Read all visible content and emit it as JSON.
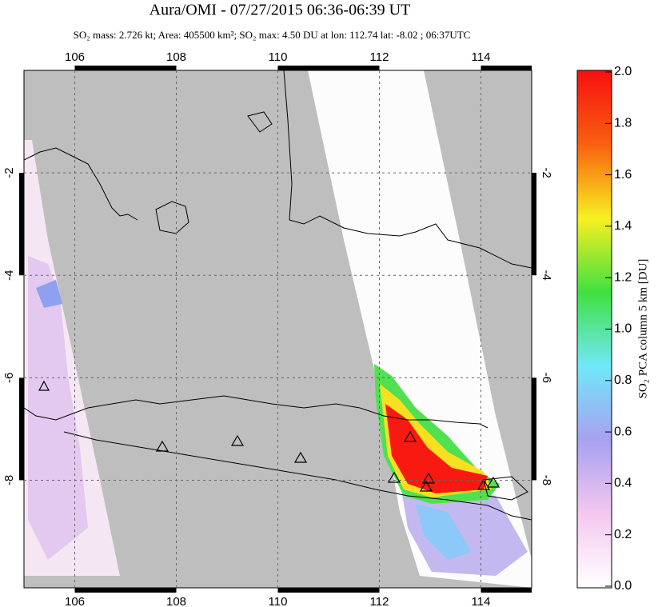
{
  "header": {
    "title": "Aura/OMI - 07/27/2015 06:36-06:39 UT",
    "subtitle": "SO₂ mass: 2.726 kt; Area: 405500 km²; SO₂ max: 4.50 DU at lon: 112.74 lat: -8.02 ; 06:37UTC"
  },
  "map": {
    "xlim": [
      105,
      115
    ],
    "ylim": [
      -10.1,
      0
    ],
    "xticks": [
      106,
      108,
      110,
      112,
      114
    ],
    "yticks": [
      -2,
      -4,
      -6,
      -8
    ],
    "grid": true
  },
  "colorbar": {
    "label": "SO₂ PCA column 5 km [DU]",
    "clim": [
      0,
      2
    ],
    "colors": [
      "#ffffff",
      "#f4c8f0",
      "#a8a0f0",
      "#70e8f8",
      "#40e040",
      "#f8f020",
      "#f86010",
      "#f81010"
    ],
    "ticks": [
      {
        "value": 0,
        "label": "0.0"
      },
      {
        "value": 0.2,
        "label": "0.2"
      },
      {
        "value": 0.4,
        "label": "0.4"
      },
      {
        "value": 0.6,
        "label": "0.6"
      },
      {
        "value": 0.8,
        "label": "0.8"
      },
      {
        "value": 1,
        "label": "1.0"
      },
      {
        "value": 1.2,
        "label": "1.2"
      },
      {
        "value": 1.4,
        "label": "1.4"
      },
      {
        "value": 1.6,
        "label": "1.6"
      },
      {
        "value": 1.8,
        "label": "1.8"
      },
      {
        "value": 2,
        "label": "2.0"
      }
    ]
  }
}
